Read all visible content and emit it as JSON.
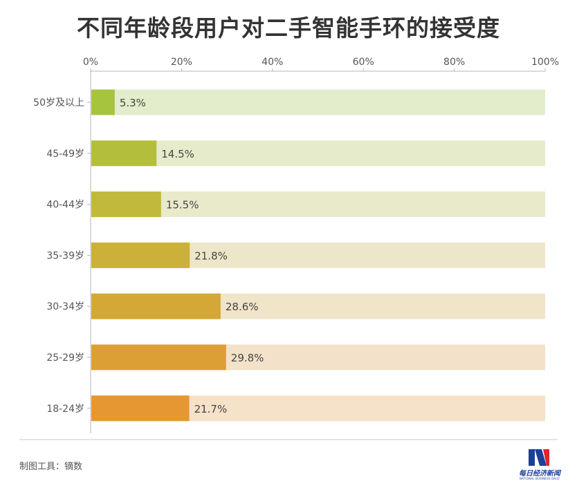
{
  "title": "不同年龄段用户对二手智能手环的接受度",
  "source": "制图工具：镝数",
  "logo": {
    "name": "每日经济新闻",
    "sub": "NATIONAL BUSINESS DAILY"
  },
  "chart_data": {
    "type": "bar",
    "orientation": "horizontal",
    "stacked_background": true,
    "categories": [
      "50岁及以上",
      "45-49岁",
      "40-44岁",
      "35-39岁",
      "30-34岁",
      "25-29岁",
      "18-24岁"
    ],
    "values": [
      5.3,
      14.5,
      15.5,
      21.8,
      28.6,
      29.8,
      21.7
    ],
    "value_labels": [
      "5.3%",
      "14.5%",
      "15.5%",
      "21.8%",
      "28.6%",
      "29.8%",
      "21.7%"
    ],
    "xlim": [
      0,
      100
    ],
    "xticks": [
      "0%",
      "20%",
      "40%",
      "60%",
      "80%",
      "100%"
    ],
    "axis_position": "top",
    "bar_colors": [
      "#a7c43f",
      "#b4be3d",
      "#c1b93b",
      "#cbb03a",
      "#d4a737",
      "#dc9f35",
      "#e69732"
    ],
    "track_colors": [
      "#e3edcc",
      "#e6eccb",
      "#e9eaca",
      "#eee6c9",
      "#f0e4c9",
      "#f3e2c9",
      "#f6e1c9"
    ],
    "title": "不同年龄段用户对二手智能手环的接受度",
    "xlabel": "",
    "ylabel": ""
  }
}
